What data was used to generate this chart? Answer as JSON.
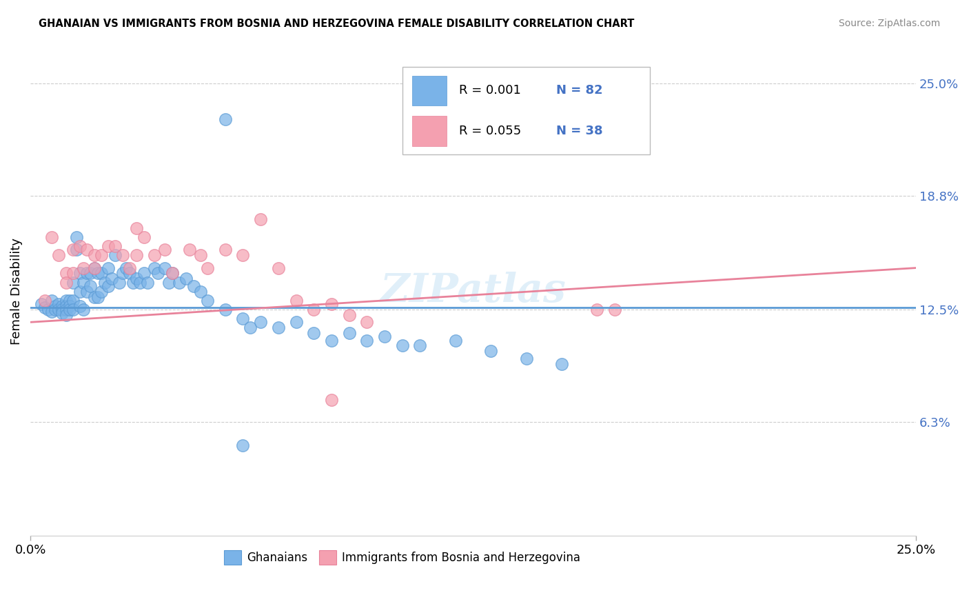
{
  "title": "GHANAIAN VS IMMIGRANTS FROM BOSNIA AND HERZEGOVINA FEMALE DISABILITY CORRELATION CHART",
  "source": "Source: ZipAtlas.com",
  "ylabel": "Female Disability",
  "xlim": [
    0.0,
    0.25
  ],
  "ylim": [
    0.0,
    0.27
  ],
  "y_tick_vals": [
    0.063,
    0.125,
    0.188,
    0.25
  ],
  "y_tick_labels": [
    "6.3%",
    "12.5%",
    "18.8%",
    "25.0%"
  ],
  "x_tick_vals": [
    0.0,
    0.25
  ],
  "x_tick_labels": [
    "0.0%",
    "25.0%"
  ],
  "ghanaians_color": "#7ab3e8",
  "bosnia_color": "#f4a0b0",
  "ghanaians_edge_color": "#5b9bd5",
  "bosnia_edge_color": "#e8829a",
  "trendline_blue_color": "#5b9bd5",
  "trendline_pink_color": "#e8829a",
  "watermark": "ZIPatlas",
  "blue_R": 0.001,
  "blue_N": 82,
  "pink_R": 0.055,
  "pink_N": 38,
  "grid_color": "#cccccc",
  "axis_label_color": "#4472c4",
  "legend_box_color": "#dddddd",
  "blue_trend_start_y": 0.126,
  "blue_trend_end_y": 0.126,
  "pink_trend_start_y": 0.118,
  "pink_trend_end_y": 0.148,
  "blue_points_x": [
    0.003,
    0.004,
    0.005,
    0.006,
    0.006,
    0.007,
    0.007,
    0.008,
    0.008,
    0.009,
    0.009,
    0.009,
    0.01,
    0.01,
    0.01,
    0.01,
    0.011,
    0.011,
    0.011,
    0.012,
    0.012,
    0.012,
    0.013,
    0.013,
    0.014,
    0.014,
    0.014,
    0.015,
    0.015,
    0.016,
    0.016,
    0.017,
    0.017,
    0.018,
    0.018,
    0.019,
    0.019,
    0.02,
    0.02,
    0.021,
    0.022,
    0.022,
    0.023,
    0.024,
    0.025,
    0.026,
    0.027,
    0.028,
    0.029,
    0.03,
    0.031,
    0.032,
    0.033,
    0.035,
    0.036,
    0.038,
    0.039,
    0.04,
    0.042,
    0.044,
    0.046,
    0.048,
    0.05,
    0.055,
    0.06,
    0.062,
    0.065,
    0.07,
    0.075,
    0.08,
    0.085,
    0.09,
    0.095,
    0.1,
    0.105,
    0.11,
    0.12,
    0.13,
    0.14,
    0.15,
    0.055,
    0.06
  ],
  "blue_points_y": [
    0.128,
    0.126,
    0.125,
    0.13,
    0.124,
    0.127,
    0.125,
    0.128,
    0.125,
    0.127,
    0.125,
    0.123,
    0.13,
    0.127,
    0.125,
    0.122,
    0.13,
    0.127,
    0.125,
    0.14,
    0.13,
    0.125,
    0.165,
    0.158,
    0.145,
    0.135,
    0.127,
    0.14,
    0.125,
    0.145,
    0.135,
    0.145,
    0.138,
    0.148,
    0.132,
    0.145,
    0.132,
    0.145,
    0.135,
    0.14,
    0.148,
    0.138,
    0.142,
    0.155,
    0.14,
    0.145,
    0.148,
    0.145,
    0.14,
    0.142,
    0.14,
    0.145,
    0.14,
    0.148,
    0.145,
    0.148,
    0.14,
    0.145,
    0.14,
    0.142,
    0.138,
    0.135,
    0.13,
    0.125,
    0.12,
    0.115,
    0.118,
    0.115,
    0.118,
    0.112,
    0.108,
    0.112,
    0.108,
    0.11,
    0.105,
    0.105,
    0.108,
    0.102,
    0.098,
    0.095,
    0.23,
    0.05
  ],
  "pink_points_x": [
    0.004,
    0.006,
    0.008,
    0.01,
    0.01,
    0.012,
    0.012,
    0.014,
    0.015,
    0.016,
    0.018,
    0.018,
    0.02,
    0.022,
    0.024,
    0.026,
    0.028,
    0.03,
    0.032,
    0.035,
    0.038,
    0.04,
    0.045,
    0.048,
    0.05,
    0.055,
    0.06,
    0.065,
    0.07,
    0.075,
    0.08,
    0.085,
    0.09,
    0.095,
    0.16,
    0.165,
    0.085,
    0.03
  ],
  "pink_points_y": [
    0.13,
    0.165,
    0.155,
    0.145,
    0.14,
    0.158,
    0.145,
    0.16,
    0.148,
    0.158,
    0.155,
    0.148,
    0.155,
    0.16,
    0.16,
    0.155,
    0.148,
    0.155,
    0.165,
    0.155,
    0.158,
    0.145,
    0.158,
    0.155,
    0.148,
    0.158,
    0.155,
    0.175,
    0.148,
    0.13,
    0.125,
    0.128,
    0.122,
    0.118,
    0.125,
    0.125,
    0.075,
    0.17
  ]
}
